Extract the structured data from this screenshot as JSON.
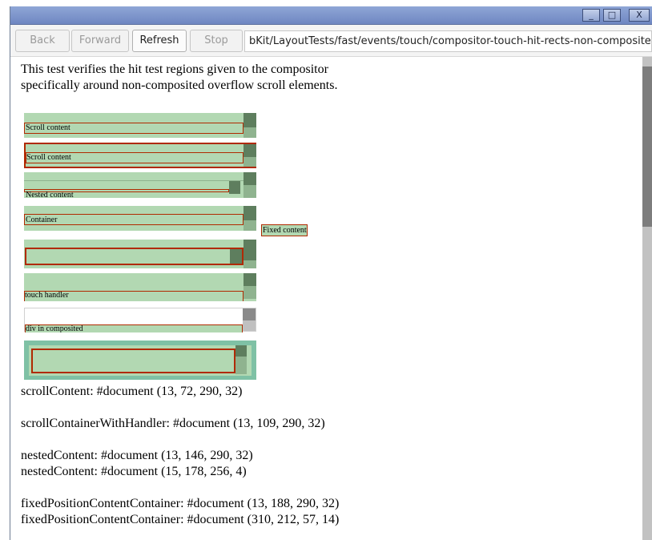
{
  "window": {
    "buttons": {
      "minimize": "_",
      "maximize": "□",
      "close": "X"
    }
  },
  "toolbar": {
    "back_label": "Back",
    "forward_label": "Forward",
    "refresh_label": "Refresh",
    "stop_label": "Stop",
    "url": "bKit/LayoutTests/fast/events/touch/compositor-touch-hit-rects-non-composited-scroll.html"
  },
  "page": {
    "description_line1": "This test verifies the hit test regions given to the compositor",
    "description_line2": "specifically around non-composited overflow scroll elements.",
    "samples": {
      "scroll_content_1": "Scroll content",
      "scroll_content_2": "Scroll content",
      "nested_content": "Nested content",
      "container": "Container",
      "fixed_content": "Fixed content",
      "touch_handler": "touch handler",
      "div_in_composited": "div in composited"
    },
    "results": [
      "scrollContent: #document (13, 72, 290, 32)",
      "scrollContainerWithHandler: #document (13, 109, 290, 32)",
      "nestedContent: #document (13, 146, 290, 32)",
      "nestedContent: #document (15, 178, 256, 4)",
      "fixedPositionContentContainer: #document (13, 188, 290, 32)",
      "fixedPositionContentContainer: #document (310, 212, 57, 14)"
    ]
  },
  "colors": {
    "hit_region": "#b2d8b2",
    "scrollbar_track": "#8fb38f",
    "scrollbar_thumb": "#5e7e5e",
    "outline": "#b02a00",
    "titlebar": "#7b93cc"
  }
}
